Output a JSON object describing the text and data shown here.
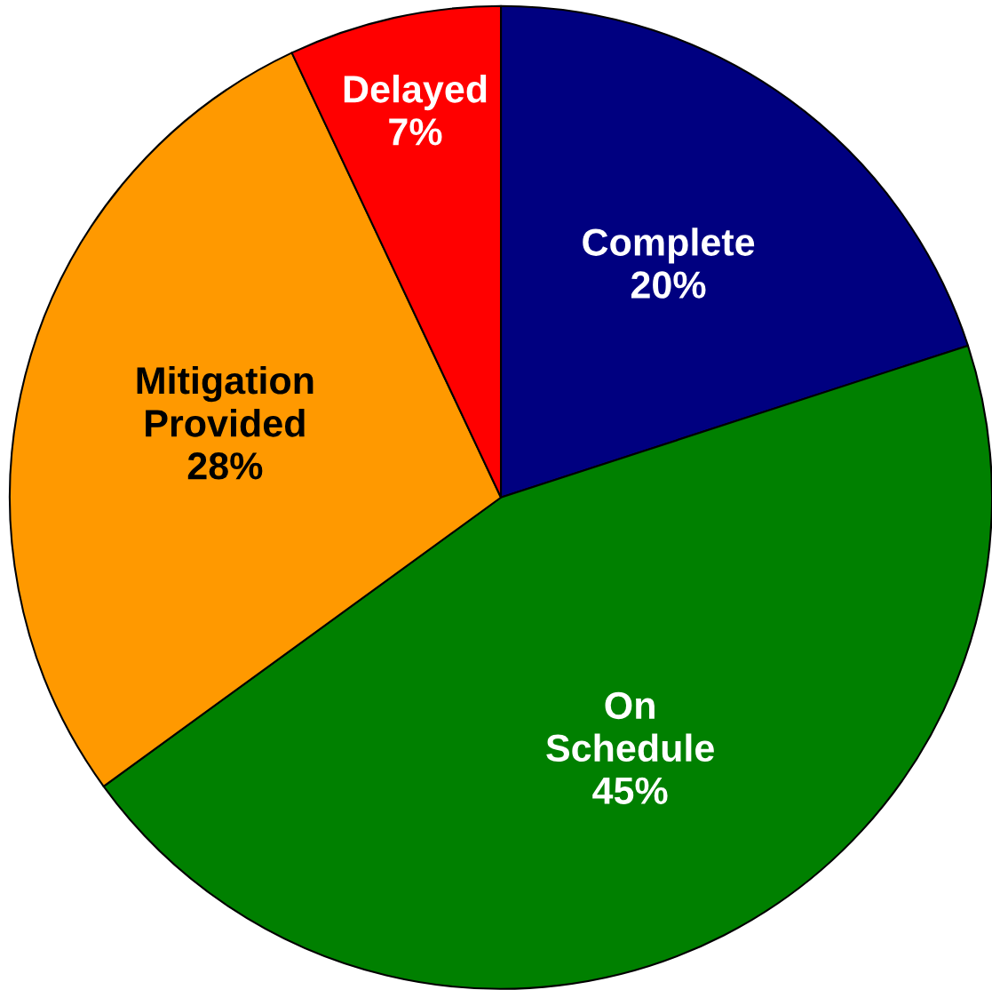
{
  "chart_data": {
    "type": "pie",
    "categories": [
      "Complete",
      "On\nSchedule",
      "Mitigation\nProvided",
      "Delayed"
    ],
    "values": [
      20,
      45,
      28,
      7
    ],
    "colors": [
      "#000080",
      "#008000",
      "#ff9900",
      "#ff0000"
    ],
    "value_labels": [
      "20%",
      "45%",
      "28%",
      "7%"
    ]
  }
}
